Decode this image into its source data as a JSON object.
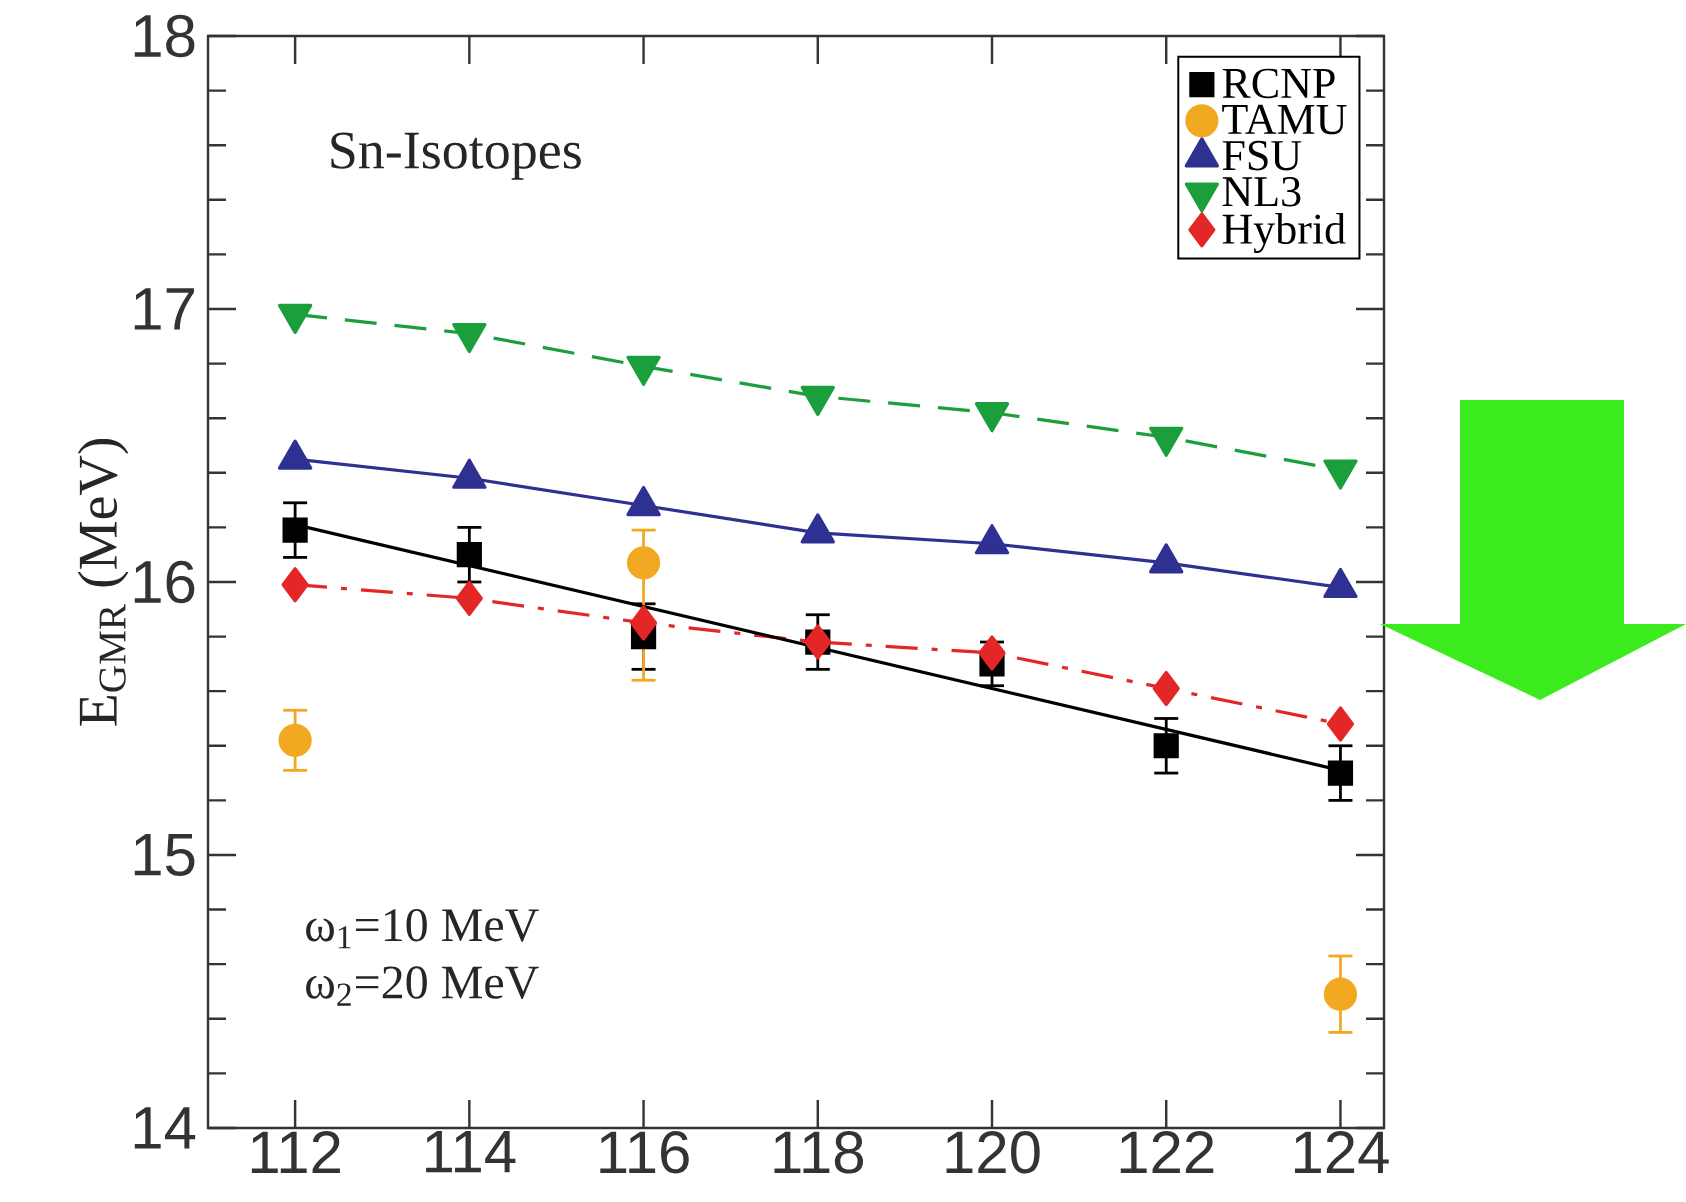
{
  "chart_data": {
    "type": "line",
    "ylabel": "E$_{GMR}$ (MeV)",
    "annotations": [
      "Sn-Isotopes",
      "ω$_{1}$=10 MeV",
      "ω$_{2}$=20 MeV"
    ],
    "x": [
      112,
      114,
      116,
      118,
      120,
      122,
      124
    ],
    "xlim": [
      111,
      124.5
    ],
    "xticks": [
      112,
      114,
      116,
      118,
      120,
      122,
      124
    ],
    "ylim": [
      14,
      18
    ],
    "yticks": [
      14,
      15,
      16,
      17,
      18
    ],
    "legend": "top right",
    "series": [
      {
        "name": "RCNP",
        "type": "scatter",
        "color": "#000000",
        "marker": "square",
        "values": [
          16.19,
          16.1,
          15.8,
          15.78,
          15.7,
          15.4,
          15.3
        ],
        "errors": [
          0.1,
          0.1,
          0.12,
          0.1,
          0.08,
          0.1,
          0.1
        ]
      },
      {
        "name": "TAMU",
        "type": "scatter",
        "color": "#F2A922",
        "marker": "circle",
        "values": [
          15.42,
          null,
          16.07,
          null,
          null,
          null,
          14.49
        ],
        "errors": [
          0.11,
          null,
          [
            15.64,
            16.19
          ],
          null,
          null,
          null,
          0.14
        ]
      },
      {
        "name": "FSU",
        "color": "#2E3192",
        "marker": "triangle",
        "line_style": "solid",
        "values": [
          16.45,
          16.38,
          16.28,
          16.18,
          16.14,
          16.07,
          15.98
        ]
      },
      {
        "name": "NL3",
        "color": "#1A9F3C",
        "marker": "triangle-down",
        "line_style": "dashed",
        "values": [
          16.98,
          16.91,
          16.79,
          16.68,
          16.62,
          16.53,
          16.41
        ]
      },
      {
        "name": "Hybrid",
        "color": "#E32626",
        "marker": "diamond",
        "line_style": "dashdot",
        "values": [
          15.99,
          15.94,
          15.85,
          15.78,
          15.74,
          15.61,
          15.48
        ]
      },
      {
        "type": "line",
        "color": "#000000",
        "marker": "none",
        "line_style": "solid",
        "x": [
          112,
          124
        ],
        "values": [
          16.21,
          15.31
        ]
      }
    ]
  }
}
